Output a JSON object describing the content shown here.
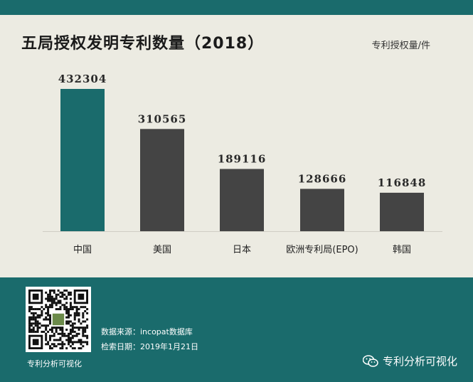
{
  "chart_data": {
    "type": "bar",
    "title": "五局授权发明专利数量（2018）",
    "unit_label": "专利授权量/件",
    "categories": [
      "中国",
      "美国",
      "日本",
      "欧洲专利局(EPO)",
      "韩国"
    ],
    "values": [
      432304,
      310565,
      189116,
      128666,
      116848
    ],
    "data_labels": [
      "432304",
      "310565",
      "189116",
      "128666",
      "116848"
    ],
    "ylim": [
      0,
      432304
    ],
    "grid": false,
    "colors": [
      "#1a6b6c",
      "#444444",
      "#444444",
      "#444444",
      "#444444"
    ]
  },
  "footer": {
    "qr_caption": "专利分析可视化",
    "source": "数据来源：incopat数据库",
    "date": "检索日期：2019年1月21日",
    "wechat_label": "专利分析可视化"
  },
  "colors": {
    "accent": "#1a6b6c",
    "bar": "#444444",
    "background": "#ecebe2"
  },
  "icons": {
    "qr": "qr-code-icon",
    "wechat": "wechat-icon"
  }
}
